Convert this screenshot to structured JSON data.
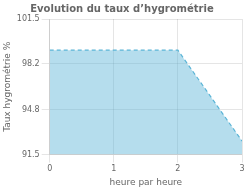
{
  "chart_data": {
    "type": "area",
    "title": "Evolution du taux d’hygrométrie",
    "xlabel": "heure par heure",
    "ylabel": "Taux hygrométrie %",
    "x": [
      0,
      2,
      3
    ],
    "values": [
      99.2,
      99.2,
      92.5
    ],
    "xlim": [
      0,
      3
    ],
    "xticks": [
      0,
      1,
      2,
      3
    ],
    "ylim": [
      91.5,
      101.5
    ],
    "yticks": [
      91.5,
      94.8,
      98.2,
      101.5
    ],
    "color": "#5ab4d6",
    "line_style": "dashed",
    "grid": true
  }
}
